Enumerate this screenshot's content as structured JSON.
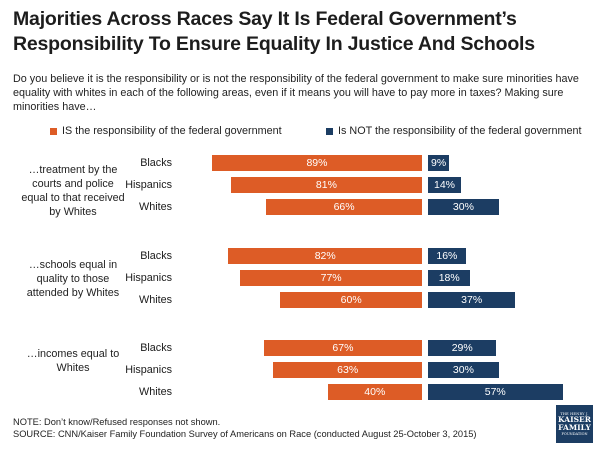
{
  "title": "Majorities Across Races Say It Is Federal Government’s Responsibility To Ensure Equality In Justice And Schools",
  "question": "Do you believe it is the responsibility or is not the responsibility of the federal government to make sure minorities have equality with whites in each of the following areas, even if it means you will have to pay more in taxes?  Making sure minorities have…",
  "colors": {
    "is": "#dd5c26",
    "not": "#1c3d63"
  },
  "chart_data": {
    "type": "bar",
    "orientation": "diverging-horizontal",
    "legend": [
      "IS the responsibility of the federal government",
      "Is NOT the responsibility of the federal government"
    ],
    "groups": [
      {
        "label": "…treatment by the courts and police equal to that received by Whites",
        "rows": [
          {
            "race": "Blacks",
            "is": 89,
            "not": 9
          },
          {
            "race": "Hispanics",
            "is": 81,
            "not": 14
          },
          {
            "race": "Whites",
            "is": 66,
            "not": 30
          }
        ]
      },
      {
        "label": "…schools equal in quality to those attended by Whites",
        "rows": [
          {
            "race": "Blacks",
            "is": 82,
            "not": 16
          },
          {
            "race": "Hispanics",
            "is": 77,
            "not": 18
          },
          {
            "race": "Whites",
            "is": 60,
            "not": 37
          }
        ]
      },
      {
        "label": "…incomes equal to Whites",
        "rows": [
          {
            "race": "Blacks",
            "is": 67,
            "not": 29
          },
          {
            "race": "Hispanics",
            "is": 63,
            "not": 30
          },
          {
            "race": "Whites",
            "is": 40,
            "not": 57
          }
        ]
      }
    ],
    "value_suffix": "%"
  },
  "note": "NOTE: Don’t know/Refused responses not shown.",
  "source": "SOURCE: CNN/Kaiser Family Foundation Survey of Americans on Race (conducted August 25-October 3, 2015)",
  "logo": {
    "line1": "THE HENRY J.",
    "line2": "KAISER",
    "line3": "FAMILY",
    "line4": "FOUNDATION"
  }
}
